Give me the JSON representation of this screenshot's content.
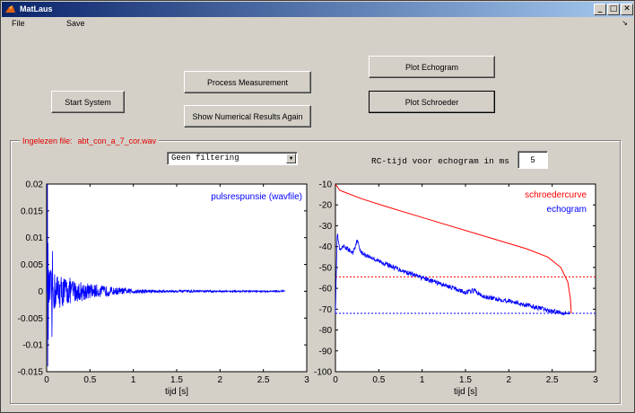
{
  "window": {
    "title": "MatLaus",
    "controls": {
      "minimize": "_",
      "maximize": "□",
      "close": "✕"
    }
  },
  "menu": {
    "file": "File",
    "save": "Save",
    "arrow": "↘"
  },
  "buttons": {
    "start_system": "Start System",
    "process_measurement": "Process Measurement",
    "show_numerical": "Show Numerical Results Again",
    "plot_echogram": "Plot Echogram",
    "plot_schroeder": "Plot Schroeder"
  },
  "panel": {
    "label": "Ingelezen file:",
    "filename": "abt_con_a_7_cor.wav",
    "label_color": "#e00000"
  },
  "filter": {
    "selected": "Geen filtering"
  },
  "rc": {
    "label": "RC-tijd voor echogram in ms",
    "value": "5"
  },
  "chart_data": [
    {
      "type": "line",
      "title": "",
      "xlabel": "tijd  [s]",
      "ylabel": "",
      "xlim": [
        0,
        3
      ],
      "ylim": [
        -0.015,
        0.02
      ],
      "x_ticks": [
        "0",
        "0.5",
        "1",
        "1.5",
        "2",
        "2.5",
        "3"
      ],
      "y_ticks": [
        "0.02",
        "0.015",
        "0.01",
        "0.005",
        "0",
        "-0.005",
        "-0.01",
        "-0.015"
      ],
      "series": [
        {
          "name": "pulsrespunsie (wavfile)",
          "color": "#0000ff",
          "kind": "decaying-noise",
          "x_end": 2.75,
          "peak_pos": 0.02,
          "peak_neg": -0.014,
          "envelope_decay_rate": 2.3
        }
      ],
      "legend_position": "top-right",
      "grid": false
    },
    {
      "type": "line",
      "title": "",
      "xlabel": "tijd  [s]",
      "ylabel": "",
      "xlim": [
        0,
        3
      ],
      "ylim": [
        -100,
        -10
      ],
      "x_ticks": [
        "0",
        "0.5",
        "1",
        "1.5",
        "2",
        "2.5",
        "3"
      ],
      "y_ticks": [
        "-10",
        "-20",
        "-30",
        "-40",
        "-50",
        "-60",
        "-70",
        "-80",
        "-90",
        "-100"
      ],
      "series": [
        {
          "name": "schroedercurve",
          "color": "#ff0000",
          "x": [
            0,
            0.05,
            0.3,
            0.6,
            1.0,
            1.4,
            1.8,
            2.2,
            2.45,
            2.6,
            2.68,
            2.71,
            2.72
          ],
          "y": [
            -10,
            -13,
            -17,
            -21,
            -26,
            -31,
            -36,
            -41,
            -45,
            -50,
            -57,
            -65,
            -72
          ]
        },
        {
          "name": "echogram",
          "color": "#0000ff",
          "x": [
            0,
            0.02,
            0.05,
            0.1,
            0.2,
            0.25,
            0.3,
            0.5,
            0.8,
            1.0,
            1.3,
            1.5,
            1.6,
            1.7,
            2.0,
            2.3,
            2.5,
            2.7
          ],
          "y": [
            -72,
            -33,
            -42,
            -40,
            -43,
            -37,
            -43,
            -47,
            -52,
            -55,
            -59,
            -62,
            -61,
            -64,
            -66,
            -69,
            -71,
            -72
          ]
        }
      ],
      "reference_lines": [
        {
          "y": -54.5,
          "color": "#ff0000",
          "style": "dotted"
        },
        {
          "y": -72,
          "color": "#0000ff",
          "style": "dotted"
        }
      ],
      "legend_position": "top-right",
      "grid": false
    }
  ]
}
